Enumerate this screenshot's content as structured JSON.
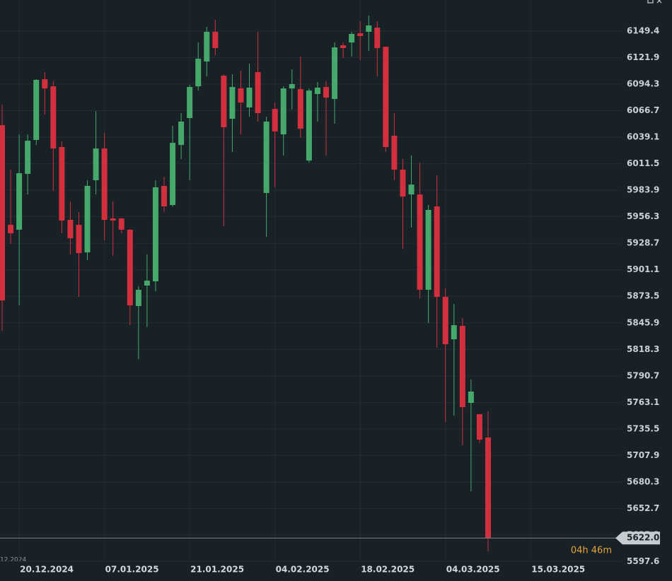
{
  "chart_data": {
    "type": "candlestick",
    "up_color": "#46a96b",
    "down_color": "#d32f3f",
    "grid": true,
    "xlim": [
      -0.25,
      72.6
    ],
    "xticks": [
      {
        "value": 2,
        "label": "20.12.2024"
      },
      {
        "value": 12,
        "label": "07.01.2025"
      },
      {
        "value": 22,
        "label": "21.01.2025"
      },
      {
        "value": 32,
        "label": "04.02.2025"
      },
      {
        "value": 42,
        "label": "18.02.2025"
      },
      {
        "value": 52,
        "label": "04.03.2025"
      },
      {
        "value": 62,
        "label": "15.03.2025"
      }
    ],
    "ylim": [
      5593.5,
      6181.8
    ],
    "yticks": [
      5597.6,
      5625.2,
      5652.7,
      5680.3,
      5707.9,
      5735.5,
      5763.1,
      5790.7,
      5818.3,
      5845.9,
      5873.5,
      5901.1,
      5928.7,
      5956.3,
      5983.9,
      6011.5,
      6039.1,
      6066.7,
      6094.3,
      6121.9,
      6149.4
    ],
    "open": [
      6051.6,
      5947.9,
      5942.8,
      6000.9,
      6036.2,
      6099.4,
      6092.0,
      6028.8,
      5953.1,
      5947.9,
      5919.2,
      5994.3,
      6027.3,
      5954.5,
      5954.5,
      5942.8,
      5863.4,
      5884.7,
      5889.1,
      5988.4,
      5968.5,
      6031.0,
      6059.0,
      6092.0,
      6117.8,
      6148.7,
      6103.1,
      6058.2,
      6089.8,
      6070.0,
      6106.8,
      5981.0,
      6068.5,
      6042.0,
      6089.8,
      6089.1,
      6014.8,
      6084.0,
      6091.3,
      6078.8,
      6134.7,
      6137.6,
      6147.2,
      6148.7,
      6153.1,
      6133.2,
      6040.6,
      6005.3,
      5979.5,
      5979.5,
      5880.3,
      5967.0,
      5872.9,
      5828.8,
      5842.8,
      5762.6,
      5750.9,
      5726.6
    ],
    "high": [
      6072.9,
      6005.3,
      6042.0,
      6042.0,
      6099.4,
      6106.8,
      6097.2,
      6034.7,
      5972.2,
      5961.2,
      5994.3,
      6066.3,
      6043.5,
      5972.2,
      5955.0,
      5943.5,
      5883.9,
      5917.1,
      5994.3,
      5997.9,
      6050.9,
      6064.1,
      6093.5,
      6137.6,
      6153.8,
      6161.2,
      6104.5,
      6104.5,
      6108.2,
      6115.6,
      6148.7,
      6060.4,
      6075.1,
      6092.0,
      6109.7,
      6122.9,
      6089.8,
      6096.5,
      6097.2,
      6137.6,
      6137.6,
      6148.7,
      6159.7,
      6165.6,
      6159.7,
      6133.2,
      6064.1,
      6016.3,
      6020.0,
      6012.6,
      5968.5,
      5999.4,
      5881.7,
      5865.6,
      5850.9,
      5786.9,
      5750.9,
      5753.8
    ],
    "low": [
      5837.6,
      5928.1,
      5864.1,
      5979.5,
      6031.0,
      6062.6,
      5983.2,
      5939.1,
      5917.1,
      5872.9,
      5911.2,
      5979.5,
      5931.8,
      5915.6,
      5939.1,
      5843.5,
      5808.2,
      5841.3,
      5878.8,
      5961.2,
      5967.0,
      6016.3,
      5994.3,
      6087.6,
      6102.3,
      6124.4,
      5946.5,
      6023.7,
      6042.0,
      6060.4,
      6055.3,
      5935.4,
      5986.9,
      6020.0,
      6067.8,
      6038.4,
      6012.6,
      6055.3,
      6020.0,
      6053.1,
      6121.5,
      6122.9,
      6119.3,
      6128.8,
      6102.3,
      6023.7,
      5994.3,
      5922.9,
      5945.0,
      5871.5,
      5845.7,
      5820.0,
      5742.8,
      5749.4,
      5718.5,
      5670.7,
      5720.7,
      5608.2
    ],
    "close": [
      5869.2,
      5939.1,
      6001.6,
      6035.4,
      6098.7,
      6089.8,
      6027.3,
      5952.3,
      5933.9,
      5918.5,
      5988.4,
      6027.3,
      5953.1,
      5952.3,
      5942.8,
      5864.1,
      5880.3,
      5889.8,
      5986.9,
      5967.0,
      6033.2,
      6055.3,
      6091.3,
      6120.7,
      6148.7,
      6131.8,
      6049.4,
      6091.3,
      6075.1,
      6090.6,
      6064.1,
      6055.3,
      6045.0,
      6089.8,
      6094.3,
      6047.9,
      6087.6,
      6090.6,
      6080.3,
      6132.5,
      6131.8,
      6146.5,
      6144.3,
      6155.3,
      6131.8,
      6028.8,
      6005.3,
      5977.3,
      5989.8,
      5880.3,
      5963.4,
      5872.9,
      5823.7,
      5843.5,
      5758.2,
      5774.4,
      5724.4,
      5622.0
    ],
    "last_price_label": "5622.0",
    "timer": "04h 46m",
    "corner_label": "12.2024"
  }
}
